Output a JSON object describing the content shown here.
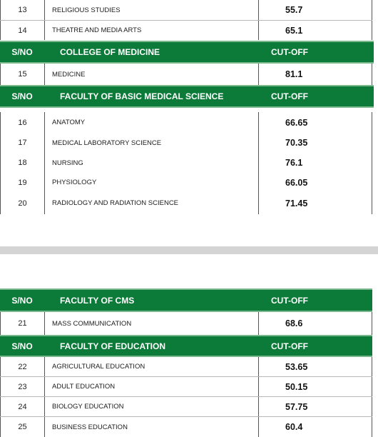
{
  "top_table": {
    "rows_a": [
      {
        "sn": "13",
        "name": "RELIGIOUS STUDIES",
        "cutoff": "55.7"
      },
      {
        "sn": "14",
        "name": "THEATRE AND MEDIA ARTS",
        "cutoff": "65.1"
      }
    ],
    "header_medicine": {
      "sn": "S/NO",
      "title": "COLLEGE OF MEDICINE",
      "cutoff": "CUT-OFF"
    },
    "rows_b": [
      {
        "sn": "15",
        "name": "MEDICINE",
        "cutoff": "81.1"
      }
    ],
    "header_basic": {
      "sn": "S/NO",
      "title": "FACULTY OF BASIC MEDICAL SCIENCE",
      "cutoff": "CUT-OFF"
    },
    "rows_c": [
      {
        "sn": "16",
        "name": "ANATOMY",
        "cutoff": "66.65"
      },
      {
        "sn": "17",
        "name": "MEDICAL LABORATORY SCIENCE",
        "cutoff": "70.35"
      },
      {
        "sn": "18",
        "name": "NURSING",
        "cutoff": "76.1"
      },
      {
        "sn": "19",
        "name": "PHYSIOLOGY",
        "cutoff": "66.05"
      },
      {
        "sn": "20",
        "name": "RADIOLOGY AND RADIATION SCIENCE",
        "cutoff": "71.45"
      }
    ]
  },
  "bottom_table": {
    "header_cms": {
      "sn": "S/NO",
      "title": "FACULTY OF CMS",
      "cutoff": "CUT-OFF"
    },
    "rows_a": [
      {
        "sn": "21",
        "name": "MASS COMMUNICATION",
        "cutoff": "68.6"
      }
    ],
    "header_education": {
      "sn": "S/NO",
      "title": "FACULTY OF EDUCATION",
      "cutoff": "CUT-OFF"
    },
    "rows_b": [
      {
        "sn": "22",
        "name": "AGRICULTURAL EDUCATION",
        "cutoff": "53.65"
      },
      {
        "sn": "23",
        "name": "ADULT EDUCATION",
        "cutoff": "50.15"
      },
      {
        "sn": "24",
        "name": "BIOLOGY EDUCATION",
        "cutoff": "57.75"
      },
      {
        "sn": "25",
        "name": "BUSINESS EDUCATION",
        "cutoff": "60.4"
      }
    ]
  },
  "colors": {
    "header_green": "#0c7a39",
    "divider_gray": "#d4d4d4"
  }
}
